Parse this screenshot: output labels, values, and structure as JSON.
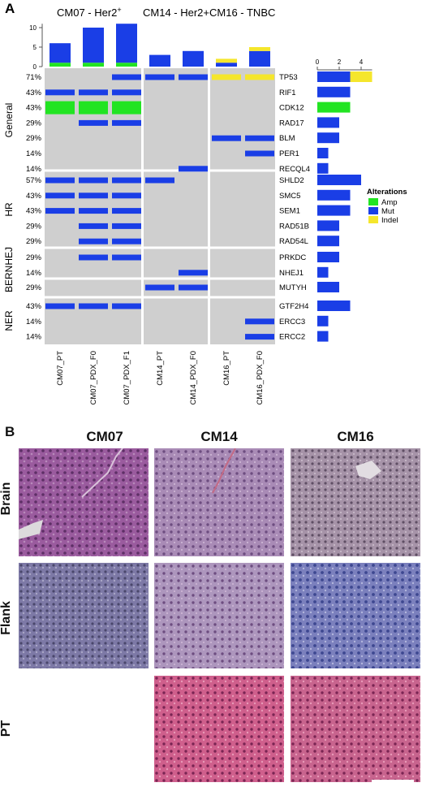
{
  "panel_a": {
    "label": "A",
    "group_headers": [
      "CM07 - Her2",
      "CM14 - Her2+",
      "CM16 - TNBC"
    ],
    "group_header_superscript": "+",
    "chart_data": {
      "type": "heatmap",
      "samples": [
        "CM07_PT",
        "CM07_PDX_F0",
        "CM07_PDX_F1",
        "CM14_PT",
        "CM14_PDX_F0",
        "CM16_PT",
        "CM16_PDX_F0"
      ],
      "sample_groups": [
        [
          0,
          1,
          2
        ],
        [
          3,
          4
        ],
        [
          5,
          6
        ]
      ],
      "top_bar": {
        "yticks": [
          "0",
          "5",
          "10"
        ],
        "ylim": [
          0,
          11
        ],
        "series": [
          {
            "name": "Amp",
            "values": [
              1,
              1,
              1,
              0,
              0,
              0,
              0
            ]
          },
          {
            "name": "Mut",
            "values": [
              5,
              9,
              10,
              3,
              4,
              1,
              4
            ]
          },
          {
            "name": "Indel",
            "values": [
              0,
              0,
              0,
              0,
              0,
              1,
              1
            ]
          }
        ]
      },
      "categories": [
        {
          "name": "General",
          "genes": [
            "TP53",
            "RIF1",
            "CDK12",
            "RAD17",
            "BLM",
            "PER1",
            "RECQL4"
          ]
        },
        {
          "name": "HR",
          "genes": [
            "SHLD2",
            "SMC5",
            "SEM1",
            "RAD51B",
            "RAD54L"
          ]
        },
        {
          "name": "BERNHEJ",
          "genes": [
            "PRKDC",
            "NHEJ1"
          ]
        },
        {
          "name": "",
          "genes": [
            "MUTYH"
          ]
        },
        {
          "name": "NER",
          "genes": [
            "GTF2H4",
            "ERCC3",
            "ERCC2"
          ]
        }
      ],
      "percentages": [
        "71%",
        "43%",
        "43%",
        "29%",
        "29%",
        "14%",
        "14%",
        "57%",
        "43%",
        "43%",
        "29%",
        "29%",
        "29%",
        "14%",
        "29%",
        "43%",
        "14%",
        "14%"
      ],
      "matrix": [
        [
          "",
          "",
          "Mut",
          "Mut",
          "Mut",
          "Indel",
          "Indel"
        ],
        [
          "Mut",
          "Mut",
          "Mut",
          "",
          "",
          "",
          ""
        ],
        [
          "Amp",
          "Amp",
          "Amp",
          "",
          "",
          "",
          ""
        ],
        [
          "",
          "Mut",
          "Mut",
          "",
          "",
          "",
          ""
        ],
        [
          "",
          "",
          "",
          "",
          "",
          "Mut",
          "Mut"
        ],
        [
          "",
          "",
          "",
          "",
          "",
          "",
          "Mut"
        ],
        [
          "",
          "",
          "",
          "",
          "Mut",
          "",
          ""
        ],
        [
          "Mut",
          "Mut",
          "Mut",
          "Mut",
          "",
          "",
          ""
        ],
        [
          "Mut",
          "Mut",
          "Mut",
          "",
          "",
          "",
          ""
        ],
        [
          "Mut",
          "Mut",
          "Mut",
          "",
          "",
          "",
          ""
        ],
        [
          "",
          "Mut",
          "Mut",
          "",
          "",
          "",
          ""
        ],
        [
          "",
          "Mut",
          "Mut",
          "",
          "",
          "",
          ""
        ],
        [
          "",
          "Mut",
          "Mut",
          "",
          "",
          "",
          ""
        ],
        [
          "",
          "",
          "",
          "",
          "Mut",
          "",
          ""
        ],
        [
          "",
          "",
          "",
          "Mut",
          "Mut",
          "",
          ""
        ],
        [
          "Mut",
          "Mut",
          "Mut",
          "",
          "",
          "",
          ""
        ],
        [
          "",
          "",
          "",
          "",
          "",
          "",
          "Mut"
        ],
        [
          "",
          "",
          "",
          "",
          "",
          "",
          "Mut"
        ]
      ],
      "side_bar": {
        "xticks": [
          "0",
          "2",
          "4"
        ],
        "xlim": [
          0,
          5
        ],
        "values": [
          {
            "Mut": 3,
            "Indel": 2
          },
          {
            "Mut": 3
          },
          {
            "Amp": 3
          },
          {
            "Mut": 2
          },
          {
            "Mut": 2
          },
          {
            "Mut": 1
          },
          {
            "Mut": 1
          },
          {
            "Mut": 4
          },
          {
            "Mut": 3
          },
          {
            "Mut": 3
          },
          {
            "Mut": 2
          },
          {
            "Mut": 2
          },
          {
            "Mut": 2
          },
          {
            "Mut": 1
          },
          {
            "Mut": 2
          },
          {
            "Mut": 3
          },
          {
            "Mut": 1
          },
          {
            "Mut": 1
          }
        ]
      },
      "legend": {
        "title": "Alterations",
        "items": [
          {
            "name": "Amp",
            "color": "#22e422"
          },
          {
            "name": "Mut",
            "color": "#1a3ee6"
          },
          {
            "name": "Indel",
            "color": "#f5e62c"
          }
        ]
      },
      "colors": {
        "Amp": "#22e422",
        "Mut": "#1a3ee6",
        "Indel": "#f5e62c",
        "empty": "#cfcfcf"
      }
    }
  },
  "panel_b": {
    "label": "B",
    "columns": [
      "CM07",
      "CM14",
      "CM16"
    ],
    "rows": [
      "Brain",
      "Flank",
      "PT"
    ]
  }
}
